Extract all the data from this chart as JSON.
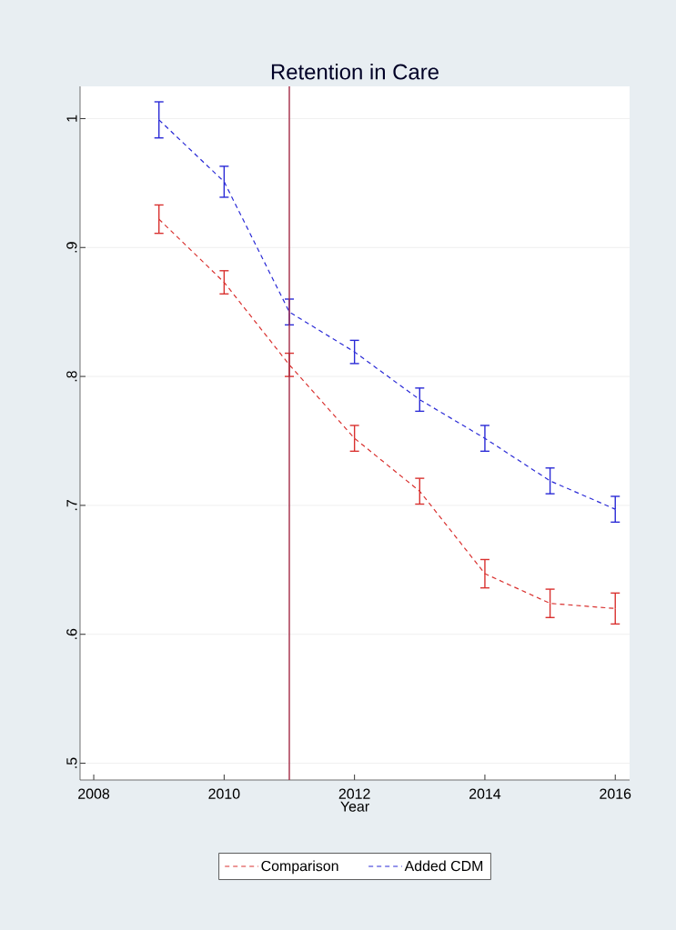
{
  "chart_data": {
    "type": "line",
    "title": "Retention in Care",
    "xlabel": "Year",
    "x": [
      2009,
      2010,
      2011,
      2012,
      2013,
      2014,
      2015,
      2016
    ],
    "series": [
      {
        "name": "Comparison",
        "color": "#d9312f",
        "values": [
          0.922,
          0.873,
          0.809,
          0.752,
          0.711,
          0.647,
          0.624,
          0.62
        ],
        "errors": [
          0.011,
          0.009,
          0.009,
          0.01,
          0.01,
          0.011,
          0.011,
          0.012
        ]
      },
      {
        "name": "Added CDM",
        "color": "#2a2ad6",
        "values": [
          0.999,
          0.951,
          0.85,
          0.819,
          0.782,
          0.752,
          0.719,
          0.697
        ],
        "errors": [
          0.014,
          0.012,
          0.01,
          0.009,
          0.009,
          0.01,
          0.01,
          0.01
        ]
      }
    ],
    "xlim": [
      2007.79,
      2016.22
    ],
    "ylim": [
      0.487,
      1.025
    ],
    "xticks": [
      2008,
      2010,
      2012,
      2014,
      2016
    ],
    "yticks": [
      {
        "value": 0.5,
        "label": ".5"
      },
      {
        "value": 0.6,
        "label": ".6"
      },
      {
        "value": 0.7,
        "label": ".7"
      },
      {
        "value": 0.8,
        "label": ".8"
      },
      {
        "value": 0.9,
        "label": ".9"
      },
      {
        "value": 1,
        "label": "1"
      }
    ],
    "ref_lines": [
      {
        "axis": "x",
        "value": 2011,
        "color": "#a32a45"
      }
    ],
    "grid": "y",
    "legend": "bottom",
    "marker": "none",
    "line_style": "dashed"
  }
}
